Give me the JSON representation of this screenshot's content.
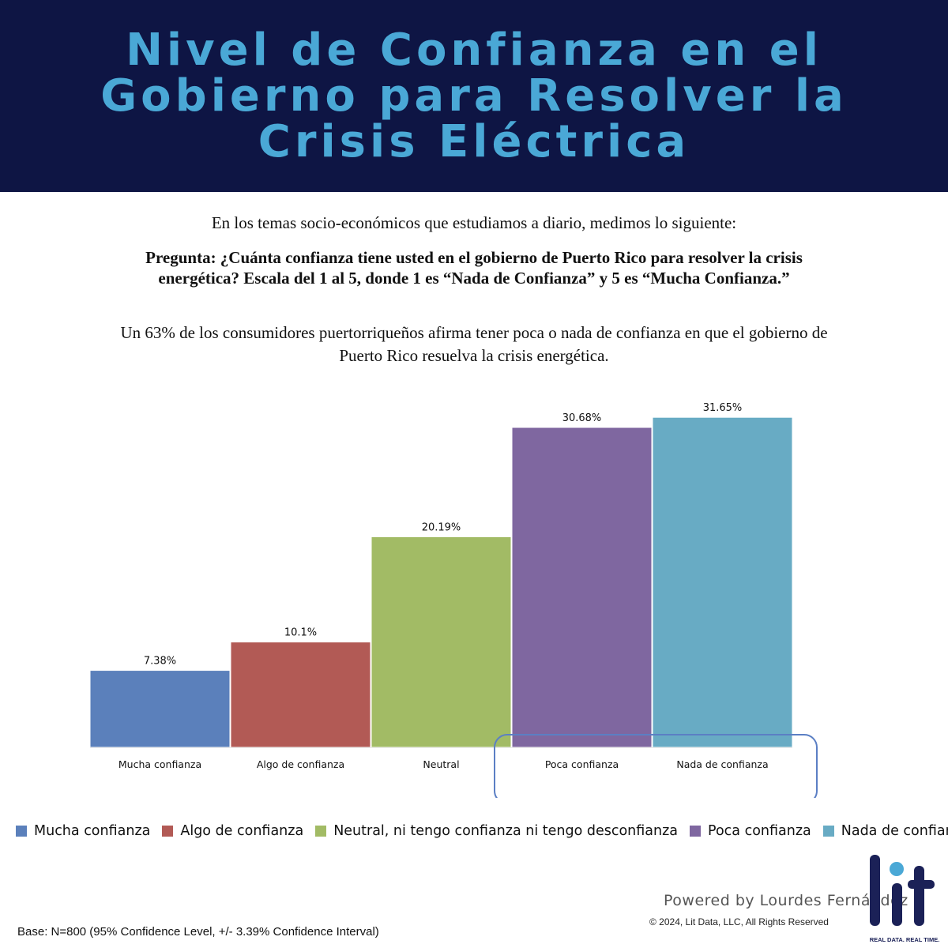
{
  "header": {
    "title_lines": [
      "Nivel de Confianza en el",
      "Gobierno para Resolver la",
      "Crisis Eléctrica"
    ]
  },
  "intro": "En los temas socio-económicos que estudiamos a diario, medimos lo siguiente:",
  "question": "Pregunta: ¿Cuánta confianza tiene usted en el gobierno de Puerto Rico para resolver la crisis energética? Escala del 1 al 5, donde 1 es “Nada de Confianza” y 5 es “Mucha Confianza.”",
  "finding": "Un 63% de los consumidores puertorriqueños afirma tener poca o nada de confianza en que el gobierno de Puerto Rico resuelva la crisis energética.",
  "chart_data": {
    "type": "bar",
    "categories": [
      "Mucha confianza",
      "Algo de confianza",
      "Neutral",
      "Poca confianza",
      "Nada de confianza"
    ],
    "values": [
      7.38,
      10.1,
      20.19,
      30.68,
      31.65
    ],
    "data_labels": [
      "7.38%",
      "10.1%",
      "20.19%",
      "30.68%",
      "31.65%"
    ],
    "colors": [
      "#5b80bb",
      "#b25a55",
      "#a2bb65",
      "#7f67a0",
      "#68abc4"
    ],
    "highlight": [
      "Poca confianza",
      "Nada de confianza"
    ],
    "highlight_color": "#5b7fc4",
    "legend": [
      "Mucha confianza",
      "Algo de confianza",
      "Neutral, ni tengo confianza ni tengo desconfianza",
      "Poca confianza",
      "Nada de confianza"
    ],
    "legend_position": "bottom",
    "ylim": [
      0,
      35
    ],
    "grid": false,
    "xlabel": "",
    "ylabel": ""
  },
  "footer": {
    "base_note": "Base: N=800 (95% Confidence Level, +/- 3.39% Confidence Interval)",
    "powered_by": "Powered by Lourdes Fernández",
    "copyright": "© 2024, Lit Data, LLC, All Rights Reserved"
  },
  "logo": {
    "wordmark": "lit",
    "tagline": "REAL DATA. REAL TIME.",
    "color_dark": "#1b2157",
    "color_dot": "#4aa8d6"
  }
}
